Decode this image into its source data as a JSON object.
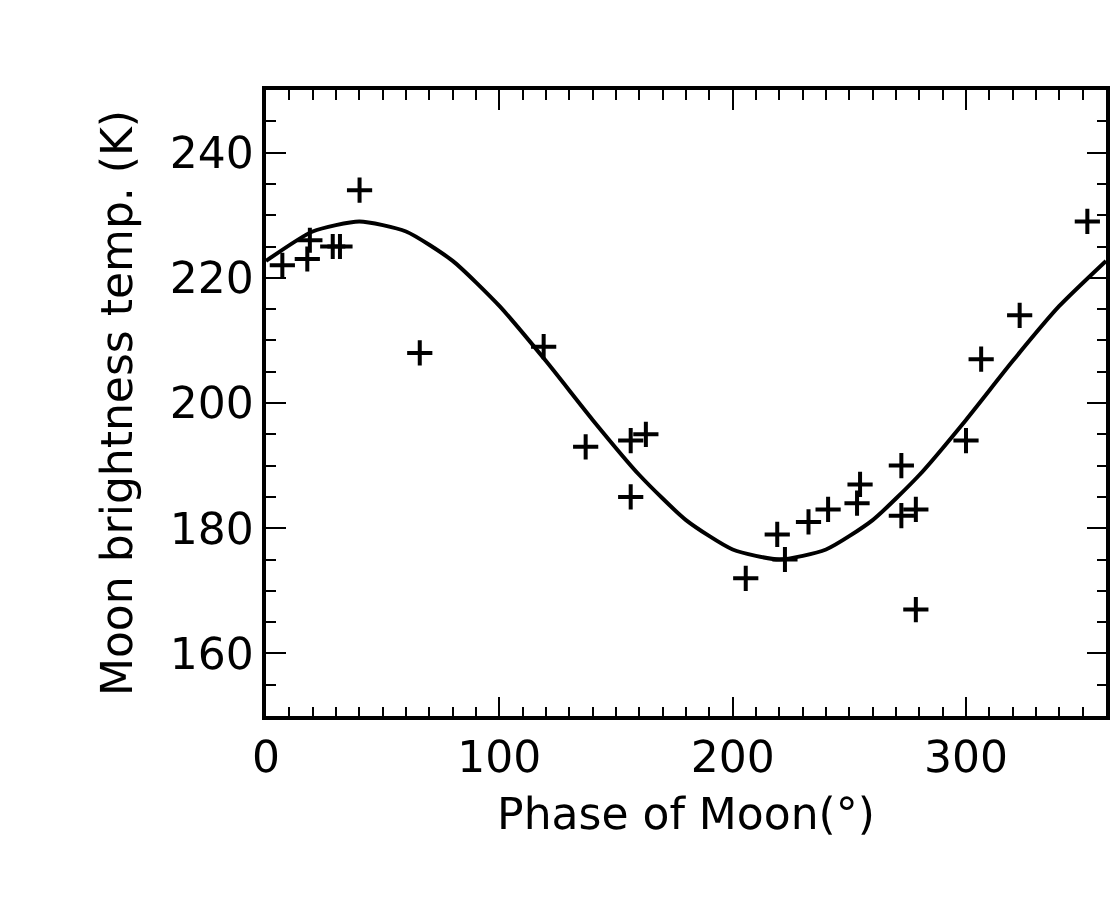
{
  "chart_data": {
    "type": "scatter",
    "xlabel": "Phase of Moon(°)",
    "ylabel": "Moon brightness temp. (K)",
    "xlim": [
      0,
      360
    ],
    "ylim": [
      150,
      250
    ],
    "xticks": [
      0,
      100,
      200,
      300
    ],
    "yticks": [
      160,
      180,
      200,
      220,
      240
    ],
    "grid": false,
    "legend": false,
    "marker": "cross",
    "series": [
      {
        "color": "#000000",
        "x": [
          7,
          17.7,
          18.8,
          28.6,
          31.7,
          40.1,
          65.9,
          119,
          137,
          156.3,
          156.3,
          162.8,
          205.6,
          219.1,
          222.4,
          232.5,
          240.9,
          253.3,
          254.6,
          272.3,
          272.3,
          278.5,
          278.5,
          300,
          306.5,
          323,
          352
        ],
        "values": [
          222,
          223,
          226,
          225,
          225,
          234,
          208,
          209,
          193,
          194,
          185,
          195,
          172,
          179,
          175,
          181,
          183,
          184,
          187,
          190,
          182,
          183,
          167,
          194,
          207,
          214,
          229
        ]
      },
      {
        "type": "line",
        "color": "#000000",
        "marker": "none",
        "line_style": "solid",
        "x": [
          0,
          20,
          40,
          60,
          80,
          100,
          120,
          140,
          160,
          180,
          200,
          220,
          240,
          260,
          280,
          300,
          320,
          340,
          360
        ],
        "values": [
          222.7,
          227.4,
          229,
          227.4,
          222.7,
          215.5,
          206.7,
          197.3,
          188.5,
          181.3,
          176.6,
          175,
          176.6,
          181.3,
          188.5,
          197.3,
          206.7,
          215.5,
          222.7
        ]
      }
    ]
  }
}
